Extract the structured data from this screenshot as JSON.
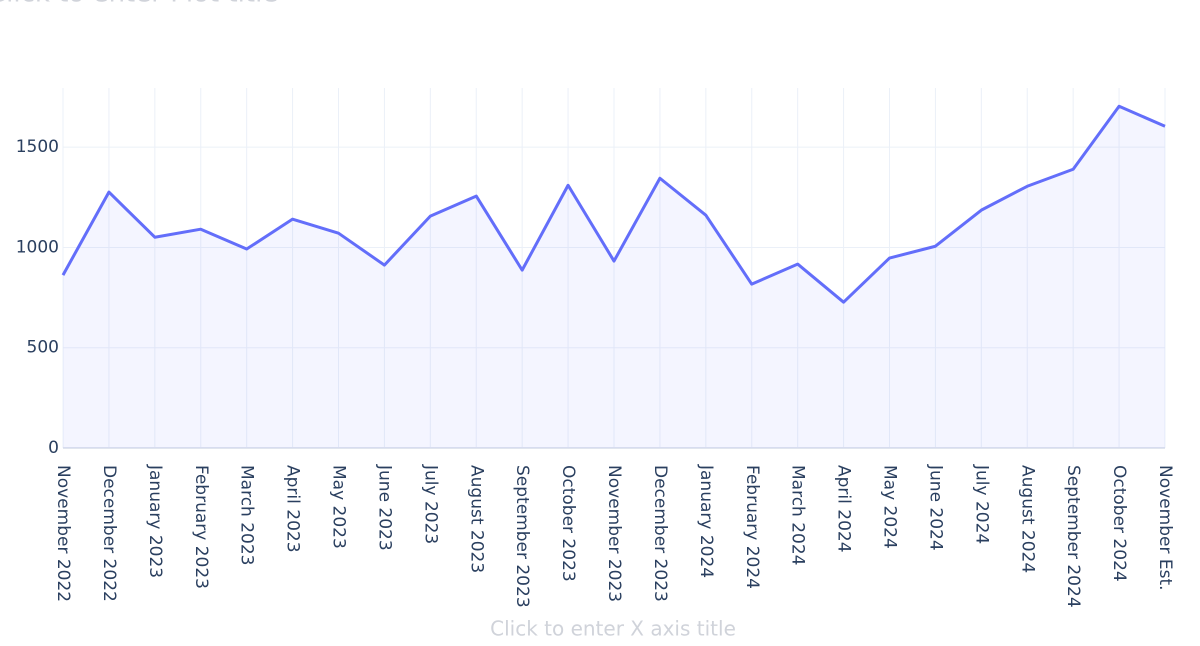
{
  "chart_data": {
    "type": "area",
    "title": "Click to enter Plot title",
    "x_label": "Click to enter X axis title",
    "categories": [
      "November 2022",
      "December 2022",
      "January 2023",
      "February 2023",
      "March 2023",
      "April 2023",
      "May 2023",
      "June 2023",
      "July 2023",
      "August 2023",
      "September 2023",
      "October 2023",
      "November 2023",
      "December 2023",
      "January 2024",
      "February 2024",
      "March 2024",
      "April 2024",
      "May 2024",
      "June 2024",
      "July 2024",
      "August 2024",
      "September 2024",
      "October 2024",
      "November Est."
    ],
    "values": [
      862,
      1276,
      1051,
      1091,
      992,
      1141,
      1071,
      912,
      1156,
      1256,
      887,
      1310,
      932,
      1345,
      1161,
      817,
      917,
      727,
      947,
      1006,
      1186,
      1305,
      1390,
      1704,
      1604
    ],
    "color": "#636efa",
    "ylim": [
      0,
      1795
    ],
    "yticks": [
      0,
      500,
      1000,
      1500
    ],
    "grid": true
  }
}
